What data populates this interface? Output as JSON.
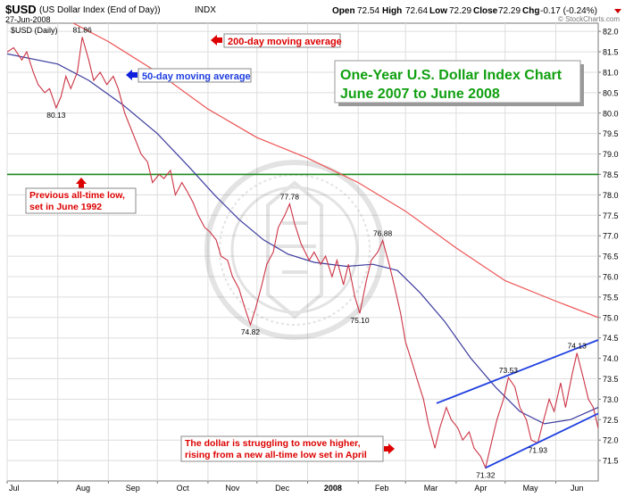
{
  "header": {
    "symbol": "$USD",
    "name": "(US Dollar Index (End of Day))",
    "exchange": "INDX",
    "date": "27-Jun-2008",
    "open_label": "Open",
    "open": "72.54",
    "high_label": "High",
    "high": "72.64",
    "low_label": "Low",
    "low": "72.29",
    "close_label": "Close",
    "close": "72.29",
    "chg_label": "Chg",
    "chg": "-0.17 (-0.24%)",
    "watermark": "© StockCharts.com",
    "panel_label": "$USD (Daily)"
  },
  "colors": {
    "price": "#cc3344",
    "ma50": "#3d3d9f",
    "ma200": "#ee5555",
    "support": "#1c8a1c",
    "channel": "#1f3fe0",
    "title_text": "#11a011",
    "annotation_text": "#dd0000"
  },
  "chart_data": {
    "type": "line",
    "title": "One-Year U.S. Dollar Index Chart",
    "subtitle": "June 2007 to June 2008",
    "x_range": [
      "2007-07-01",
      "2008-06-27"
    ],
    "ylim": [
      71.0,
      82.2
    ],
    "x_ticks": [
      "Jul",
      "Aug",
      "Sep",
      "Oct",
      "Nov",
      "Dec",
      "2008",
      "Feb",
      "Mar",
      "Apr",
      "May",
      "Jun"
    ],
    "y_ticks": [
      "71.5",
      "72.0",
      "72.5",
      "73.0",
      "73.5",
      "74.0",
      "74.5",
      "75.0",
      "75.5",
      "76.0",
      "76.5",
      "77.0",
      "77.5",
      "78.0",
      "78.5",
      "79.0",
      "79.5",
      "80.0",
      "80.5",
      "81.0",
      "81.5",
      "82.0"
    ],
    "grid": true,
    "series": [
      {
        "key": "price",
        "points": [
          [
            "2007-07-01",
            81.5
          ],
          [
            "2007-07-05",
            81.6
          ],
          [
            "2007-07-10",
            81.3
          ],
          [
            "2007-07-13",
            81.5
          ],
          [
            "2007-07-17",
            81.0
          ],
          [
            "2007-07-20",
            80.7
          ],
          [
            "2007-07-24",
            80.5
          ],
          [
            "2007-07-27",
            80.6
          ],
          [
            "2007-07-31",
            80.13
          ],
          [
            "2007-08-03",
            80.4
          ],
          [
            "2007-08-06",
            80.9
          ],
          [
            "2007-08-09",
            80.6
          ],
          [
            "2007-08-13",
            81.0
          ],
          [
            "2007-08-16",
            81.86
          ],
          [
            "2007-08-20",
            81.3
          ],
          [
            "2007-08-23",
            80.8
          ],
          [
            "2007-08-27",
            81.0
          ],
          [
            "2007-08-31",
            80.7
          ],
          [
            "2007-09-04",
            80.9
          ],
          [
            "2007-09-07",
            80.6
          ],
          [
            "2007-09-11",
            80.0
          ],
          [
            "2007-09-14",
            79.7
          ],
          [
            "2007-09-18",
            79.3
          ],
          [
            "2007-09-21",
            79.0
          ],
          [
            "2007-09-25",
            78.8
          ],
          [
            "2007-09-28",
            78.3
          ],
          [
            "2007-10-02",
            78.5
          ],
          [
            "2007-10-05",
            78.4
          ],
          [
            "2007-10-09",
            78.6
          ],
          [
            "2007-10-12",
            78.0
          ],
          [
            "2007-10-16",
            78.3
          ],
          [
            "2007-10-19",
            78.1
          ],
          [
            "2007-10-23",
            77.8
          ],
          [
            "2007-10-26",
            77.5
          ],
          [
            "2007-10-30",
            77.2
          ],
          [
            "2007-11-02",
            77.1
          ],
          [
            "2007-11-06",
            76.9
          ],
          [
            "2007-11-09",
            76.5
          ],
          [
            "2007-11-13",
            76.4
          ],
          [
            "2007-11-16",
            76.0
          ],
          [
            "2007-11-20",
            75.7
          ],
          [
            "2007-11-23",
            75.3
          ],
          [
            "2007-11-27",
            74.82
          ],
          [
            "2007-11-30",
            75.2
          ],
          [
            "2007-12-04",
            75.8
          ],
          [
            "2007-12-07",
            76.3
          ],
          [
            "2007-12-11",
            76.6
          ],
          [
            "2007-12-14",
            77.2
          ],
          [
            "2007-12-18",
            77.5
          ],
          [
            "2007-12-21",
            77.78
          ],
          [
            "2007-12-24",
            77.3
          ],
          [
            "2007-12-28",
            76.8
          ],
          [
            "2008-01-02",
            76.4
          ],
          [
            "2008-01-05",
            76.6
          ],
          [
            "2008-01-09",
            76.3
          ],
          [
            "2008-01-12",
            76.5
          ],
          [
            "2008-01-16",
            76.0
          ],
          [
            "2008-01-19",
            76.4
          ],
          [
            "2008-01-23",
            75.8
          ],
          [
            "2008-01-26",
            76.3
          ],
          [
            "2008-01-30",
            75.5
          ],
          [
            "2008-02-02",
            75.1
          ],
          [
            "2008-02-06",
            75.9
          ],
          [
            "2008-02-09",
            76.4
          ],
          [
            "2008-02-13",
            76.6
          ],
          [
            "2008-02-16",
            76.88
          ],
          [
            "2008-02-20",
            76.3
          ],
          [
            "2008-02-23",
            75.8
          ],
          [
            "2008-02-27",
            75.1
          ],
          [
            "2008-03-01",
            74.4
          ],
          [
            "2008-03-05",
            73.9
          ],
          [
            "2008-03-08",
            73.5
          ],
          [
            "2008-03-12",
            73.0
          ],
          [
            "2008-03-15",
            72.4
          ],
          [
            "2008-03-19",
            71.8
          ],
          [
            "2008-03-22",
            72.3
          ],
          [
            "2008-03-26",
            72.8
          ],
          [
            "2008-03-29",
            72.5
          ],
          [
            "2008-04-02",
            72.3
          ],
          [
            "2008-04-05",
            72.0
          ],
          [
            "2008-04-09",
            72.2
          ],
          [
            "2008-04-12",
            71.8
          ],
          [
            "2008-04-16",
            71.6
          ],
          [
            "2008-04-19",
            71.32
          ],
          [
            "2008-04-23",
            72.0
          ],
          [
            "2008-04-26",
            72.5
          ],
          [
            "2008-04-30",
            73.0
          ],
          [
            "2008-05-03",
            73.53
          ],
          [
            "2008-05-07",
            73.3
          ],
          [
            "2008-05-10",
            72.8
          ],
          [
            "2008-05-14",
            72.5
          ],
          [
            "2008-05-17",
            72.0
          ],
          [
            "2008-05-21",
            71.93
          ],
          [
            "2008-05-24",
            72.4
          ],
          [
            "2008-05-28",
            73.0
          ],
          [
            "2008-05-31",
            72.7
          ],
          [
            "2008-06-04",
            73.4
          ],
          [
            "2008-06-07",
            72.8
          ],
          [
            "2008-06-11",
            73.6
          ],
          [
            "2008-06-14",
            74.13
          ],
          [
            "2008-06-18",
            73.5
          ],
          [
            "2008-06-21",
            73.0
          ],
          [
            "2008-06-24",
            72.8
          ],
          [
            "2008-06-27",
            72.29
          ]
        ]
      },
      {
        "key": "ma50",
        "label": "50-day moving average",
        "points": [
          [
            "2007-07-01",
            81.45
          ],
          [
            "2007-08-01",
            81.2
          ],
          [
            "2007-08-20",
            80.8
          ],
          [
            "2007-09-10",
            80.2
          ],
          [
            "2007-10-01",
            79.5
          ],
          [
            "2007-10-20",
            78.7
          ],
          [
            "2007-11-05",
            78.0
          ],
          [
            "2007-11-20",
            77.4
          ],
          [
            "2007-12-05",
            76.9
          ],
          [
            "2007-12-20",
            76.55
          ],
          [
            "2008-01-05",
            76.35
          ],
          [
            "2008-01-25",
            76.25
          ],
          [
            "2008-02-10",
            76.3
          ],
          [
            "2008-02-25",
            76.15
          ],
          [
            "2008-03-10",
            75.6
          ],
          [
            "2008-03-25",
            74.9
          ],
          [
            "2008-04-10",
            74.0
          ],
          [
            "2008-04-25",
            73.3
          ],
          [
            "2008-05-10",
            72.7
          ],
          [
            "2008-05-25",
            72.4
          ],
          [
            "2008-06-10",
            72.5
          ],
          [
            "2008-06-27",
            72.8
          ]
        ]
      },
      {
        "key": "ma200",
        "label": "200-day moving average",
        "points": [
          [
            "2007-07-01",
            82.9
          ],
          [
            "2007-08-01",
            82.4
          ],
          [
            "2007-09-01",
            81.75
          ],
          [
            "2007-10-01",
            81.0
          ],
          [
            "2007-11-01",
            80.1
          ],
          [
            "2007-12-01",
            79.4
          ],
          [
            "2008-01-01",
            78.9
          ],
          [
            "2008-02-01",
            78.3
          ],
          [
            "2008-03-01",
            77.6
          ],
          [
            "2008-04-01",
            76.7
          ],
          [
            "2008-05-01",
            75.9
          ],
          [
            "2008-06-01",
            75.4
          ],
          [
            "2008-06-27",
            75.0
          ]
        ]
      }
    ],
    "horizontal_line": {
      "y": 78.5
    },
    "channel": [
      {
        "x1": "2008-03-20",
        "y1": 72.9,
        "x2": "2008-06-27",
        "y2": 74.45
      },
      {
        "x1": "2008-04-19",
        "y1": 71.32,
        "x2": "2008-06-27",
        "y2": 72.65
      }
    ],
    "point_labels": [
      {
        "x": "2007-07-31",
        "y": 80.13,
        "text": "80.13",
        "pos": "below"
      },
      {
        "x": "2007-08-16",
        "y": 81.86,
        "text": "81.86",
        "pos": "above"
      },
      {
        "x": "2007-11-27",
        "y": 74.82,
        "text": "74.82",
        "pos": "below"
      },
      {
        "x": "2007-12-21",
        "y": 77.78,
        "text": "77.78",
        "pos": "above"
      },
      {
        "x": "2008-02-02",
        "y": 75.1,
        "text": "75.10",
        "pos": "below"
      },
      {
        "x": "2008-02-16",
        "y": 76.88,
        "text": "76.88",
        "pos": "above"
      },
      {
        "x": "2008-04-19",
        "y": 71.32,
        "text": "71.32",
        "pos": "below"
      },
      {
        "x": "2008-05-03",
        "y": 73.53,
        "text": "73.53",
        "pos": "above"
      },
      {
        "x": "2008-05-21",
        "y": 71.93,
        "text": "71.93",
        "pos": "below"
      },
      {
        "x": "2008-06-14",
        "y": 74.13,
        "text": "74.13",
        "pos": "above"
      }
    ],
    "annotations": {
      "ma200_note": "200-day moving average",
      "ma50_note": "50-day moving average",
      "support_note_1": "Previous all-time low,",
      "support_note_2": "set in June 1992",
      "dollar_note_1": "The dollar is struggling to move higher,",
      "dollar_note_2": "rising from a new all-time low set in April"
    }
  }
}
